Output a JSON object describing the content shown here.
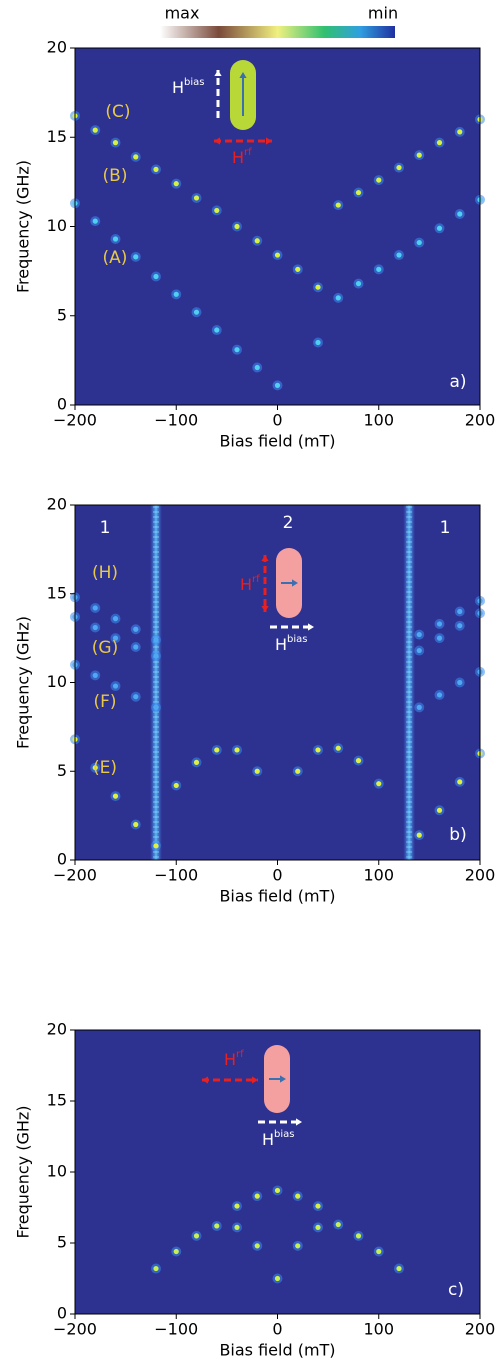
{
  "colorbar": {
    "max_label": "max",
    "min_label": "min"
  },
  "chart_data": [
    {
      "type": "spectrum",
      "xlabel": "Bias field (mT)",
      "ylabel": "Frequency (GHz)",
      "xlim": [
        -200,
        200
      ],
      "ylim": [
        0,
        20
      ],
      "xticks": [
        {
          "value": -200,
          "label": "−200"
        },
        {
          "value": -100,
          "label": "−100"
        },
        0,
        100,
        200
      ],
      "yticks": [
        0,
        5,
        10,
        15,
        20
      ],
      "x": [
        -200,
        -180,
        -160,
        -140,
        -120,
        -100,
        -80,
        -60,
        -40,
        -20,
        0,
        20,
        40,
        60,
        80,
        100,
        120,
        140,
        160,
        180,
        200
      ],
      "series": [
        {
          "color": "#d8f040",
          "values": [
            16.2,
            15.4,
            14.7,
            13.9,
            13.2,
            12.4,
            11.6,
            10.9,
            10.0,
            9.2,
            8.4,
            7.6,
            6.6,
            11.2,
            11.9,
            12.6,
            13.3,
            14.0,
            14.7,
            15.3,
            16.0
          ]
        },
        {
          "color": "#4fd0f0",
          "values": [
            11.3,
            10.3,
            9.3,
            8.3,
            7.2,
            6.2,
            5.2,
            4.2,
            3.1,
            2.1,
            1.1,
            null,
            3.5,
            6.0,
            6.8,
            7.6,
            8.4,
            9.1,
            9.9,
            10.7,
            11.5
          ]
        }
      ],
      "annotations": [
        "(C)",
        "(B)",
        "(A)",
        "a)"
      ],
      "inset_labels": [
        {
          "base": "H",
          "sup": "bias"
        },
        {
          "base": "H",
          "sup": "rf"
        }
      ]
    },
    {
      "type": "spectrum",
      "xlabel": "Bias field (mT)",
      "ylabel": "Frequency (GHz)",
      "xlim": [
        -200,
        200
      ],
      "ylim": [
        0,
        20
      ],
      "xticks": [
        {
          "value": -200,
          "label": "−200"
        },
        {
          "value": -100,
          "label": "−100"
        },
        0,
        100,
        200
      ],
      "yticks": [
        0,
        5,
        10,
        15,
        20
      ],
      "x": [
        -200,
        -180,
        -160,
        -140,
        -120,
        -100,
        -80,
        -60,
        -40,
        -20,
        0,
        20,
        40,
        60,
        80,
        100,
        120,
        140,
        160,
        180,
        200
      ],
      "stripes": [
        -120,
        130
      ],
      "series": [
        {
          "color": "#e0f040",
          "values": [
            6.8,
            5.2,
            3.6,
            2.0,
            0.8,
            4.2,
            5.5,
            6.2,
            6.2,
            5.0,
            null,
            5.0,
            6.2,
            6.3,
            5.6,
            4.3,
            null,
            1.4,
            2.8,
            4.4,
            6.0
          ]
        },
        {
          "color": "#4fa8f0",
          "values": [
            11.0,
            10.4,
            9.8,
            9.2,
            8.6,
            null,
            null,
            null,
            null,
            null,
            null,
            null,
            null,
            null,
            null,
            null,
            null,
            8.6,
            9.3,
            10.0,
            10.6
          ]
        },
        {
          "color": "#4fa8f0",
          "values": [
            13.7,
            13.1,
            12.5,
            12.0,
            11.5,
            null,
            null,
            null,
            null,
            null,
            null,
            null,
            null,
            null,
            null,
            null,
            null,
            11.8,
            12.5,
            13.2,
            13.9
          ]
        },
        {
          "color": "#4fa8f0",
          "values": [
            14.8,
            14.2,
            13.6,
            13.0,
            12.4,
            null,
            null,
            null,
            null,
            null,
            null,
            null,
            null,
            null,
            null,
            null,
            null,
            12.7,
            13.3,
            14.0,
            14.6
          ]
        }
      ],
      "annotations": [
        "1",
        "2",
        "1",
        "(H)",
        "(G)",
        "(F)",
        "(E)",
        "b)"
      ],
      "inset_labels": [
        {
          "base": "H",
          "sup": "rf"
        },
        {
          "base": "H",
          "sup": "bias"
        }
      ]
    },
    {
      "type": "spectrum",
      "xlabel": "Bias field (mT)",
      "ylabel": "Frequency (GHz)",
      "xlim": [
        -200,
        200
      ],
      "ylim": [
        0,
        20
      ],
      "xticks": [
        {
          "value": -200,
          "label": "−200"
        },
        {
          "value": -100,
          "label": "−100"
        },
        0,
        100,
        200
      ],
      "yticks": [
        0,
        5,
        10,
        15,
        20
      ],
      "x": [
        -200,
        -180,
        -160,
        -140,
        -120,
        -100,
        -80,
        -60,
        -40,
        -20,
        0,
        20,
        40,
        60,
        80,
        100,
        120,
        140,
        160,
        180,
        200
      ],
      "series": [
        {
          "color": "#d8f040",
          "values": [
            null,
            null,
            null,
            null,
            null,
            null,
            null,
            null,
            7.6,
            8.3,
            8.7,
            8.3,
            7.6,
            null,
            null,
            null,
            null,
            null,
            null,
            null,
            null
          ]
        },
        {
          "color": "#c8f050",
          "values": [
            null,
            null,
            null,
            null,
            3.2,
            4.4,
            5.5,
            6.2,
            6.1,
            4.8,
            2.5,
            4.8,
            6.1,
            6.3,
            5.5,
            4.4,
            3.2,
            null,
            null,
            null,
            null
          ]
        }
      ],
      "annotations": [
        "c)"
      ],
      "inset_labels": [
        {
          "base": "H",
          "sup": "rf"
        },
        {
          "base": "H",
          "sup": "bias"
        }
      ]
    }
  ]
}
